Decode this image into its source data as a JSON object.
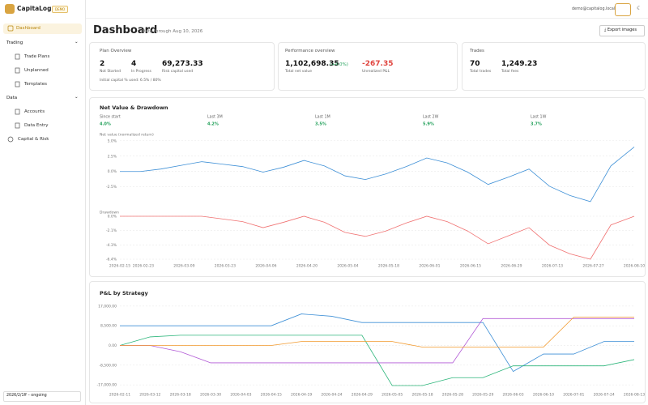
{
  "sidebar": {
    "brand": "CapitaLog",
    "badge": "DEMO",
    "items": [
      "Dashboard",
      "Trading",
      "Trade Plans",
      "Unplanned",
      "Templates",
      "Data",
      "Accounts",
      "Data Entry",
      "Capital & Risk"
    ],
    "range": "2026/2/1ff – ongoing"
  },
  "topbar": {
    "user": "demo@capitalog.local"
  },
  "header": {
    "title": "Dashboard",
    "subtitle": "Data through Aug 10, 2026",
    "export": "Export images"
  },
  "cards": [
    {
      "title": "Plan Overview",
      "stats": [
        {
          "value": "2",
          "label": "Not Started"
        },
        {
          "value": "4",
          "label": "In Progress"
        },
        {
          "value": "69,273.33",
          "label": "Risk capital used"
        }
      ],
      "note": "Initial capital % used: 6.5% / 80%"
    },
    {
      "title": "Performance overview",
      "stats": [
        {
          "value": "1,102,698.35",
          "change": "(+4.0%)",
          "label": "Total net value"
        },
        {
          "value": "-267.35",
          "label": "Unrealized P&L"
        }
      ]
    },
    {
      "title": "Trades",
      "stats": [
        {
          "value": "70",
          "label": "Total trades"
        },
        {
          "value": "1,249.23",
          "label": "Total fees"
        }
      ]
    }
  ],
  "chart_data": [
    {
      "type": "line",
      "title": "Net Value & Drawdown",
      "stats": [
        {
          "label": "Since start",
          "value": "4.0%"
        },
        {
          "label": "Last 3M",
          "value": "4.2%"
        },
        {
          "label": "Last 1M",
          "value": "3.5%"
        },
        {
          "label": "Last 2W",
          "value": "5.9%"
        },
        {
          "label": "Last 1W",
          "value": "3.7%"
        }
      ],
      "label": "Net value (normalized return)",
      "x": [
        "2026-02-15",
        "2026-02-22",
        "2026-03-01",
        "2026-03-08",
        "2026-03-15",
        "2026-03-22",
        "2026-03-29",
        "2026-04-05",
        "2026-04-12",
        "2026-04-19",
        "2026-04-26",
        "2026-05-03",
        "2026-05-10",
        "2026-05-17",
        "2026-05-24",
        "2026-05-31",
        "2026-06-07",
        "2026-06-14",
        "2026-06-21",
        "2026-06-28",
        "2026-07-05",
        "2026-07-12",
        "2026-07-19",
        "2026-07-26",
        "2026-08-02",
        "2026-08-10"
      ],
      "values": [
        0.0,
        0.0,
        0.4,
        1.0,
        1.6,
        1.2,
        0.8,
        -0.1,
        0.7,
        1.8,
        0.9,
        -0.7,
        -1.3,
        -0.4,
        0.8,
        2.2,
        1.4,
        -0.1,
        -2.1,
        -0.9,
        0.4,
        -2.4,
        -3.9,
        -4.9,
        0.9,
        4.0
      ],
      "color": "#3d8fd6",
      "xlim": [
        "2026-02-15",
        "2026-08-10"
      ],
      "ylim": [
        -5.7,
        5.5
      ],
      "yticks": [
        {
          "value": 5,
          "label": "5.0%"
        },
        {
          "value": 2.5,
          "label": "2.5%"
        },
        {
          "value": 0,
          "label": "0.0%"
        },
        {
          "value": -2.5,
          "label": "-2.5%"
        }
      ],
      "grid": true
    },
    {
      "type": "line",
      "label": "Drawdown",
      "x": [
        "2026-02-15",
        "2026-02-22",
        "2026-03-01",
        "2026-03-08",
        "2026-03-15",
        "2026-03-22",
        "2026-03-29",
        "2026-04-05",
        "2026-04-12",
        "2026-04-19",
        "2026-04-26",
        "2026-05-03",
        "2026-05-10",
        "2026-05-17",
        "2026-05-24",
        "2026-05-31",
        "2026-06-07",
        "2026-06-14",
        "2026-06-21",
        "2026-06-28",
        "2026-07-05",
        "2026-07-12",
        "2026-07-19",
        "2026-07-26",
        "2026-08-02",
        "2026-08-10"
      ],
      "values": [
        0,
        0,
        0,
        0,
        0,
        -0.4,
        -0.8,
        -1.7,
        -0.9,
        0,
        -0.9,
        -2.4,
        -3.0,
        -2.2,
        -1.0,
        0,
        -0.8,
        -2.2,
        -4.1,
        -2.9,
        -1.7,
        -4.3,
        -5.6,
        -6.4,
        -1.3,
        0
      ],
      "color": "#f07272",
      "xlim": [
        "2026-02-15",
        "2026-08-10"
      ],
      "ylim": [
        -6.4,
        0.6
      ],
      "yticks": [
        {
          "value": 0,
          "label": "0.0%"
        },
        {
          "value": -2.1,
          "label": "-2.1%"
        },
        {
          "value": -4.3,
          "label": "-4.3%"
        },
        {
          "value": -6.4,
          "label": "-6.4%"
        }
      ],
      "xticks": [
        "2026-02-15",
        "2026-02-23",
        "2026-03-09",
        "2026-03-23",
        "2026-04-06",
        "2026-04-20",
        "2026-05-04",
        "2026-05-18",
        "2026-06-01",
        "2026-06-15",
        "2026-06-29",
        "2026-07-13",
        "2026-07-27",
        "2026-08-10"
      ],
      "grid": true
    },
    {
      "type": "line",
      "title": "P&L by Strategy",
      "categories": [
        "2026-02-11",
        "2026-03-12",
        "2026-03-18",
        "2026-03-30",
        "2026-04-03",
        "2026-04-15",
        "2026-04-19",
        "2026-04-24",
        "2026-04-29",
        "2026-05-05",
        "2026-05-18",
        "2026-05-28",
        "2026-05-29",
        "2026-06-03",
        "2026-06-10",
        "2026-07-01",
        "2026-07-24",
        "2026-08-13"
      ],
      "series": [
        {
          "color": "#3d8fd6",
          "values": [
            8500,
            8500,
            8500,
            8500,
            8500,
            8500,
            13600,
            12600,
            9900,
            9900,
            9900,
            9900,
            9900,
            -11200,
            -3700,
            -3700,
            1700,
            1700
          ]
        },
        {
          "color": "#2bb57a",
          "values": [
            0,
            3700,
            4400,
            4400,
            4400,
            4400,
            4400,
            4400,
            4400,
            -17300,
            -17300,
            -13900,
            -13900,
            -8800,
            -8800,
            -8800,
            -8800,
            -6100
          ]
        },
        {
          "color": "#b25ad6",
          "values": [
            0,
            0,
            -2700,
            -7500,
            -7500,
            -7500,
            -7500,
            -7500,
            -7500,
            -7500,
            -7500,
            -7500,
            11600,
            11600,
            11600,
            11600,
            11600,
            11600
          ]
        },
        {
          "color": "#f29a2e",
          "values": [
            0,
            0,
            0,
            0,
            0,
            0,
            1700,
            1700,
            1700,
            1700,
            -700,
            -700,
            -700,
            -700,
            -700,
            12200,
            12200,
            12200
          ]
        }
      ],
      "ylim": [
        -18000,
        18000
      ],
      "yticks": [
        {
          "value": 17000,
          "label": "17,000.00"
        },
        {
          "value": 8500,
          "label": "8,500.00"
        },
        {
          "value": 0,
          "label": "0.00"
        },
        {
          "value": -8500,
          "label": "-8,500.00"
        },
        {
          "value": -17000,
          "label": "-17,000.00"
        }
      ],
      "grid": true
    }
  ]
}
